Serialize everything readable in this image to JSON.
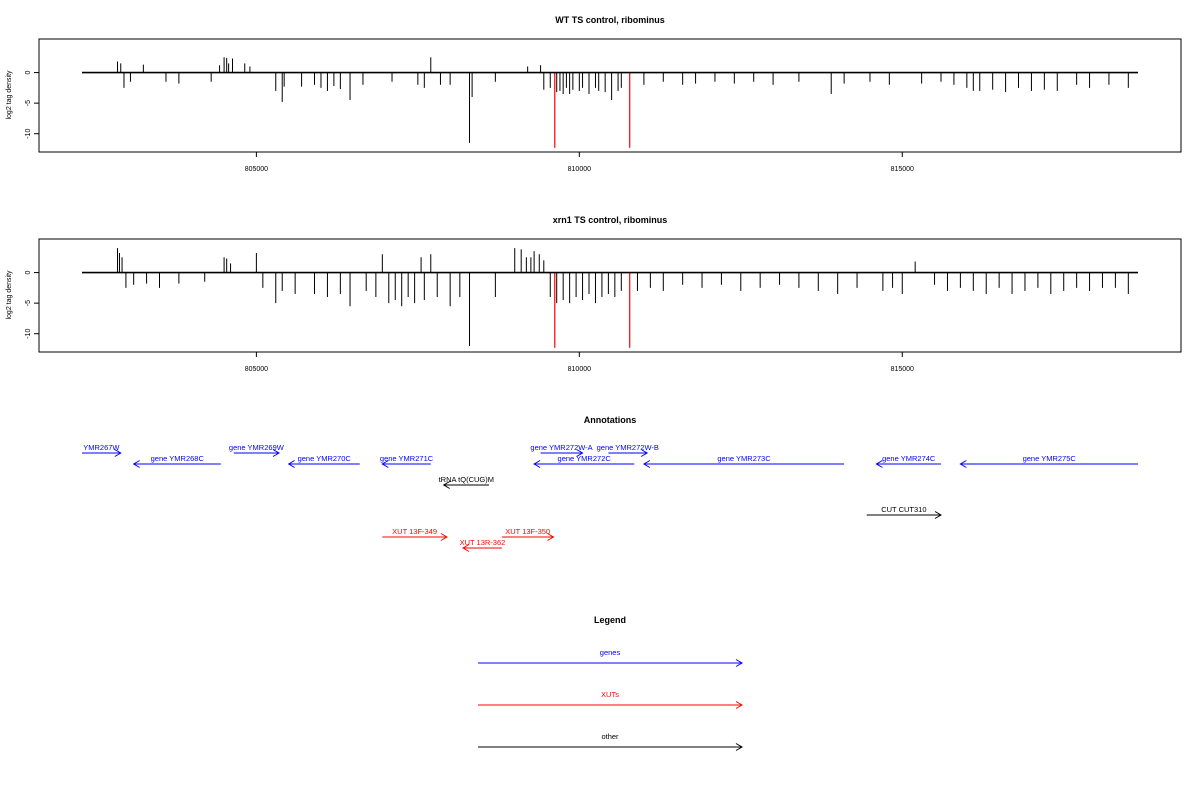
{
  "colors": {
    "genes": "#0000ff",
    "xuts": "#ff0000",
    "other": "#000000",
    "axis": "#000000"
  },
  "chart_data": [
    {
      "type": "bar",
      "title": "WT TS control, ribominus",
      "ylabel": "log2 tag density",
      "xlim": [
        802300,
        818650
      ],
      "ylim": [
        -12.5,
        5
      ],
      "yticks": [
        0,
        -5,
        -10
      ],
      "xticks": [
        805000,
        810000,
        815000
      ],
      "xtick_labels": [
        "805000",
        "810000",
        "815000"
      ],
      "highlights": [
        {
          "x": 809620,
          "y": -12.3,
          "color": "#ff0000"
        },
        {
          "x": 810780,
          "y": -12.3,
          "color": "#ff0000"
        }
      ],
      "x": [
        802850,
        802900,
        802950,
        803050,
        803250,
        803600,
        803800,
        804300,
        804430,
        804500,
        804540,
        804570,
        804630,
        804820,
        804900,
        805300,
        805400,
        805430,
        805700,
        805900,
        806000,
        806100,
        806200,
        806300,
        806450,
        806650,
        807100,
        807500,
        807600,
        807700,
        807850,
        808000,
        808300,
        808340,
        808700,
        809200,
        809400,
        809450,
        809550,
        809650,
        809700,
        809750,
        809800,
        809850,
        809900,
        810000,
        810050,
        810150,
        810250,
        810300,
        810400,
        810500,
        810600,
        810650,
        811000,
        811300,
        811600,
        811800,
        812100,
        812400,
        812700,
        813000,
        813400,
        813900,
        814100,
        814500,
        814800,
        815300,
        815600,
        815800,
        816000,
        816100,
        816200,
        816400,
        816600,
        816800,
        817000,
        817200,
        817400,
        817700,
        817900,
        818200,
        818500
      ],
      "values": [
        1.8,
        1.5,
        -2.5,
        -1.5,
        1.3,
        -1.5,
        -1.8,
        -1.5,
        1.2,
        2.5,
        2.4,
        1.5,
        2.3,
        1.5,
        1.0,
        -3.0,
        -4.8,
        -2.3,
        -2.3,
        -2.0,
        -2.5,
        -3.0,
        -2.2,
        -2.7,
        -4.5,
        -2.0,
        -1.5,
        -2.0,
        -2.5,
        2.5,
        -2.0,
        -2.0,
        -11.5,
        -4.0,
        -1.5,
        1.0,
        1.2,
        -2.8,
        -2.5,
        -3.2,
        -3.0,
        -3.5,
        -2.5,
        -3.5,
        -2.8,
        -3.0,
        -2.5,
        -3.5,
        -2.5,
        -3.0,
        -3.2,
        -4.5,
        -3.0,
        -2.5,
        -2.0,
        -1.5,
        -2.0,
        -1.8,
        -1.5,
        -1.8,
        -1.5,
        -2.0,
        -1.5,
        -3.5,
        -1.8,
        -1.5,
        -2.0,
        -1.8,
        -1.5,
        -2.0,
        -2.5,
        -3.0,
        -3.0,
        -2.8,
        -3.2,
        -2.5,
        -3.0,
        -2.8,
        -3.0,
        -2.0,
        -2.5,
        -2.0,
        -2.5
      ]
    },
    {
      "type": "bar",
      "title": "xrn1 TS control, ribominus",
      "ylabel": "log2 tag density",
      "xlim": [
        802300,
        818650
      ],
      "ylim": [
        -12.5,
        5
      ],
      "yticks": [
        0,
        -5,
        -10
      ],
      "xticks": [
        805000,
        810000,
        815000
      ],
      "xtick_labels": [
        "805000",
        "810000",
        "815000"
      ],
      "highlights": [
        {
          "x": 809620,
          "y": -12.3,
          "color": "#ff0000"
        },
        {
          "x": 810780,
          "y": -12.3,
          "color": "#ff0000"
        }
      ],
      "x": [
        802850,
        802880,
        802920,
        802980,
        803100,
        803300,
        803500,
        803800,
        804200,
        804500,
        804540,
        804600,
        805000,
        805100,
        805300,
        805400,
        805600,
        805900,
        806100,
        806300,
        806450,
        806700,
        806850,
        806950,
        807050,
        807150,
        807250,
        807350,
        807450,
        807550,
        807600,
        807700,
        807800,
        808000,
        808150,
        808300,
        808700,
        809000,
        809100,
        809180,
        809250,
        809300,
        809380,
        809450,
        809550,
        809650,
        809750,
        809850,
        809950,
        810050,
        810150,
        810250,
        810350,
        810450,
        810550,
        810650,
        810900,
        811100,
        811300,
        811600,
        811900,
        812200,
        812500,
        812800,
        813100,
        813400,
        813700,
        814000,
        814300,
        814700,
        814850,
        815000,
        815200,
        815500,
        815700,
        815900,
        816100,
        816300,
        816500,
        816700,
        816900,
        817100,
        817300,
        817500,
        817700,
        817900,
        818100,
        818300,
        818500
      ],
      "values": [
        4.0,
        3.2,
        2.5,
        -2.5,
        -2.0,
        -1.8,
        -2.5,
        -1.8,
        -1.5,
        2.5,
        2.3,
        1.5,
        3.2,
        -2.5,
        -5.0,
        -3.0,
        -3.5,
        -3.5,
        -4.0,
        -3.5,
        -5.5,
        -3.0,
        -4.0,
        3.0,
        -5.0,
        -4.5,
        -5.5,
        -4.0,
        -5.0,
        2.5,
        -4.5,
        3.0,
        -4.0,
        -5.5,
        -4.0,
        -12.0,
        -4.0,
        4.0,
        3.8,
        2.5,
        2.5,
        3.5,
        3.0,
        2.0,
        -4.0,
        -5.0,
        -4.5,
        -5.0,
        -4.0,
        -4.5,
        -3.5,
        -5.0,
        -4.0,
        -3.5,
        -4.0,
        -3.0,
        -3.0,
        -2.5,
        -3.0,
        -2.0,
        -2.5,
        -2.0,
        -3.0,
        -2.5,
        -2.0,
        -2.5,
        -3.0,
        -3.5,
        -2.5,
        -3.0,
        -2.5,
        -3.5,
        1.8,
        -2.0,
        -3.0,
        -2.5,
        -3.0,
        -3.5,
        -2.5,
        -3.5,
        -3.0,
        -2.5,
        -3.5,
        -3.0,
        -2.5,
        -3.0,
        -2.5,
        -2.5,
        -3.5
      ]
    }
  ],
  "annotations": {
    "title": "Annotations",
    "genes": [
      {
        "label": "YMR267W",
        "start": 802300,
        "end": 802900,
        "strand": "+",
        "row": 0
      },
      {
        "label": "gene YMR268C",
        "start": 803100,
        "end": 804450,
        "strand": "-",
        "row": 1
      },
      {
        "label": "gene YMR269W",
        "start": 804650,
        "end": 805350,
        "strand": "+",
        "row": 0
      },
      {
        "label": "gene YMR270C",
        "start": 805500,
        "end": 806600,
        "strand": "-",
        "row": 1
      },
      {
        "label": "gene YMR271C",
        "start": 806950,
        "end": 807700,
        "strand": "-",
        "row": 1
      },
      {
        "label": "gene YMR272W-A",
        "start": 809400,
        "end": 810050,
        "strand": "+",
        "row": 0
      },
      {
        "label": "gene YMR272W-B",
        "start": 810450,
        "end": 811050,
        "strand": "+",
        "row": 0
      },
      {
        "label": "gene YMR272C",
        "start": 809300,
        "end": 810850,
        "strand": "-",
        "row": 1
      },
      {
        "label": "gene YMR273C",
        "start": 811000,
        "end": 814100,
        "strand": "-",
        "row": 1
      },
      {
        "label": "gene YMR274C",
        "start": 814600,
        "end": 815600,
        "strand": "-",
        "row": 1
      },
      {
        "label": "gene YMR275C",
        "start": 815900,
        "end": 818650,
        "strand": "-",
        "row": 1
      }
    ],
    "other": [
      {
        "label": "tRNA tQ(CUG)M",
        "start": 807900,
        "end": 808600,
        "strand": "-",
        "row": 2
      },
      {
        "label": "CUT CUT310",
        "start": 814450,
        "end": 815600,
        "strand": "+",
        "row": 3
      }
    ],
    "xuts": [
      {
        "label": "XUT 13F-349",
        "start": 806950,
        "end": 807950,
        "strand": "+",
        "row": 4
      },
      {
        "label": "XUT 13F-350",
        "start": 808800,
        "end": 809600,
        "strand": "+",
        "row": 4
      },
      {
        "label": "XUT 13R-362",
        "start": 808200,
        "end": 808800,
        "strand": "-",
        "row": 5
      }
    ]
  },
  "legend": {
    "title": "Legend",
    "items": [
      {
        "label": "genes",
        "color": "#0000ff"
      },
      {
        "label": "XUTs",
        "color": "#ff0000"
      },
      {
        "label": "other",
        "color": "#000000"
      }
    ]
  }
}
